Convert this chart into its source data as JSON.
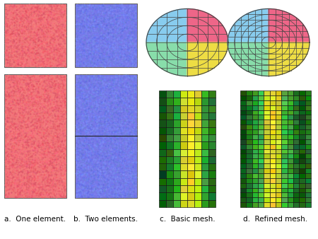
{
  "bg_color": "#ffffff",
  "label_a": "a.  One element.",
  "label_b": "b.  Two elements.",
  "label_c": "c.  Basic mesh.",
  "label_d": "d.  Refined mesh.",
  "rect_salmon": "#f07878",
  "rect_blue": "#7878e8",
  "noise_salmon": [
    "#ff5566",
    "#ee6677",
    "#dd4455",
    "#ff8888",
    "#cc4466",
    "#ff6688"
  ],
  "noise_blue": [
    "#6677ff",
    "#7788ee",
    "#5566dd",
    "#8899ff",
    "#6688cc",
    "#7799ff"
  ],
  "grid_line_color": "#444444",
  "circle_colors": {
    "top_left": "#88ccee",
    "top_right": "#ee6688",
    "bottom_left": "#88ddaa",
    "bottom_right": "#eedd44"
  },
  "basic_cols": 8,
  "basic_rows": 16,
  "refined_cols": 12,
  "refined_rows": 24,
  "basic_col_colors": [
    "#115511",
    "#227722",
    "#33aa33",
    "#ccdd22",
    "#eedd22",
    "#ccdd22",
    "#33aa33",
    "#227722"
  ],
  "refined_col_colors": [
    "#115511",
    "#227722",
    "#33aa33",
    "#44bb44",
    "#ccdd22",
    "#eedd22",
    "#ccdd22",
    "#44bb44",
    "#33aa33",
    "#227722",
    "#115511",
    "#227722"
  ]
}
